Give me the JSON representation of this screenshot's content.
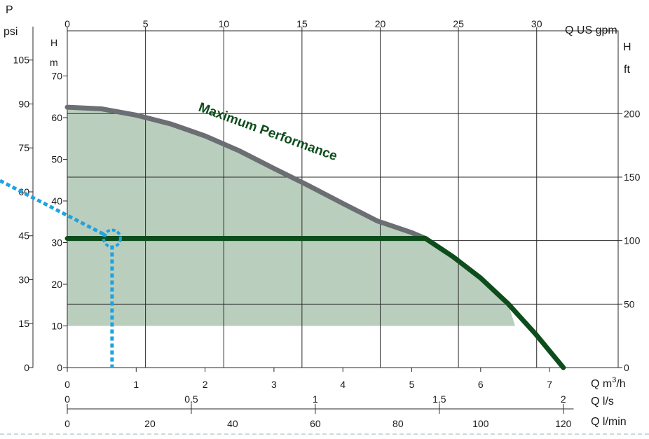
{
  "chart_data": {
    "type": "line",
    "title": "",
    "annotation": "Maximum Performance",
    "unit_labels": {
      "pressure_symbol": "P",
      "pressure_unit": "psi",
      "head_m_symbol": "H",
      "head_m_unit": "m",
      "head_ft_symbol": "H",
      "head_ft_unit": "ft",
      "flow_gpm": "Q US gpm",
      "flow_m3h_prefix": "Q m",
      "flow_m3h_sup": "3",
      "flow_m3h_suffix": "/h",
      "flow_ls": "Q l/s",
      "flow_lmin": "Q l/min"
    },
    "axes": {
      "x_m3h": {
        "ticks": [
          "0",
          "1",
          "2",
          "3",
          "4",
          "5",
          "6",
          "7"
        ],
        "range": [
          0,
          7.2
        ]
      },
      "x_gpm": {
        "ticks": [
          "0",
          "5",
          "10",
          "15",
          "20",
          "25",
          "30"
        ]
      },
      "x_ls": {
        "ticks": [
          "0",
          "0,5",
          "1",
          "1,5",
          "2"
        ]
      },
      "x_lmin": {
        "ticks": [
          "0",
          "20",
          "40",
          "60",
          "80",
          "100",
          "120"
        ]
      },
      "y_m": {
        "ticks": [
          "0",
          "10",
          "20",
          "30",
          "40",
          "50",
          "60",
          "70"
        ],
        "range": [
          0,
          72
        ]
      },
      "y_psi": {
        "ticks": [
          "0",
          "15",
          "30",
          "45",
          "60",
          "75",
          "90",
          "105"
        ]
      },
      "y_ft": {
        "ticks": [
          "0",
          "50",
          "100",
          "150",
          "200"
        ]
      }
    },
    "series": [
      {
        "x": [
          0,
          0.5,
          1,
          1.5,
          2,
          2.5,
          3,
          3.5,
          4,
          4.5,
          5,
          5.2
        ],
        "y": [
          62.5,
          62.1,
          60.6,
          58.5,
          55.6,
          52.0,
          47.8,
          43.7,
          39.4,
          35.2,
          32.4,
          31.0
        ]
      },
      {
        "x": [
          0,
          5.2,
          5.6,
          6.0,
          6.4,
          6.8,
          7.2
        ],
        "y": [
          31,
          31,
          26.6,
          21.5,
          15.3,
          8.0,
          0
        ]
      },
      {
        "x": [
          0,
          0,
          6.5,
          6.5
        ],
        "y": [
          10,
          62.5,
          10,
          10
        ]
      }
    ],
    "operating_point": {
      "x": 0.65,
      "y": 31
    },
    "colors": {
      "max_curve": "#6b6e72",
      "operating_curve": "#0d4d1c",
      "fill": "#b6cbb9",
      "grid": "#2a2a2a",
      "pointer": "#1fa3e0",
      "annotation": "#0d4d1c"
    }
  }
}
